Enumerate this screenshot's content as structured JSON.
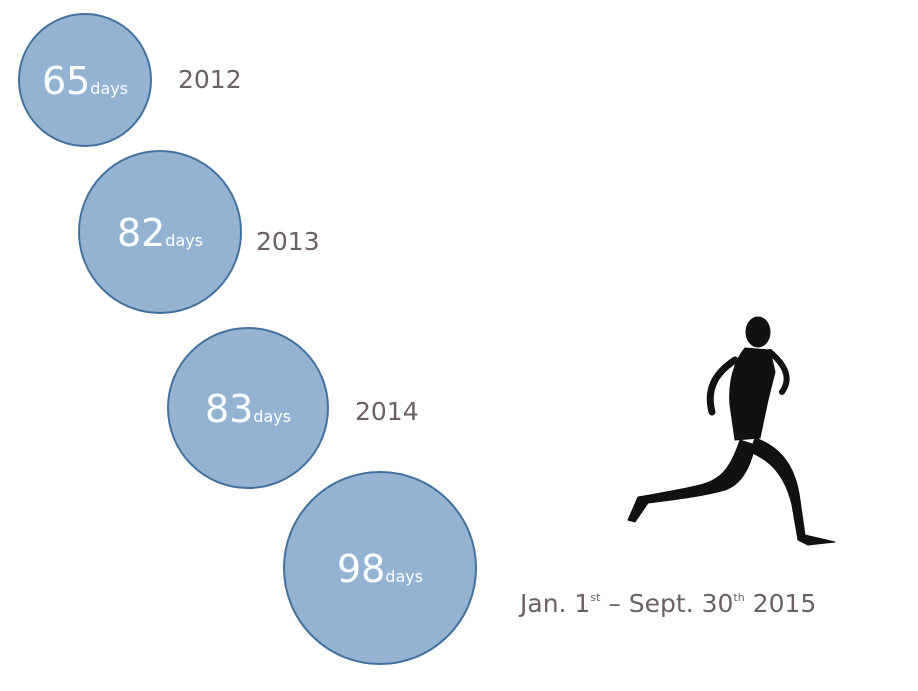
{
  "items": [
    {
      "number": "65",
      "unit": "days",
      "label": "2012"
    },
    {
      "number": "82",
      "unit": "days",
      "label": "2013"
    },
    {
      "number": "83",
      "unit": "days",
      "label": "2014"
    },
    {
      "number": "98",
      "unit": "days",
      "label_parts": [
        "Jan. 1",
        "st",
        " – Sept. 30",
        "th",
        " 2015"
      ]
    }
  ]
}
